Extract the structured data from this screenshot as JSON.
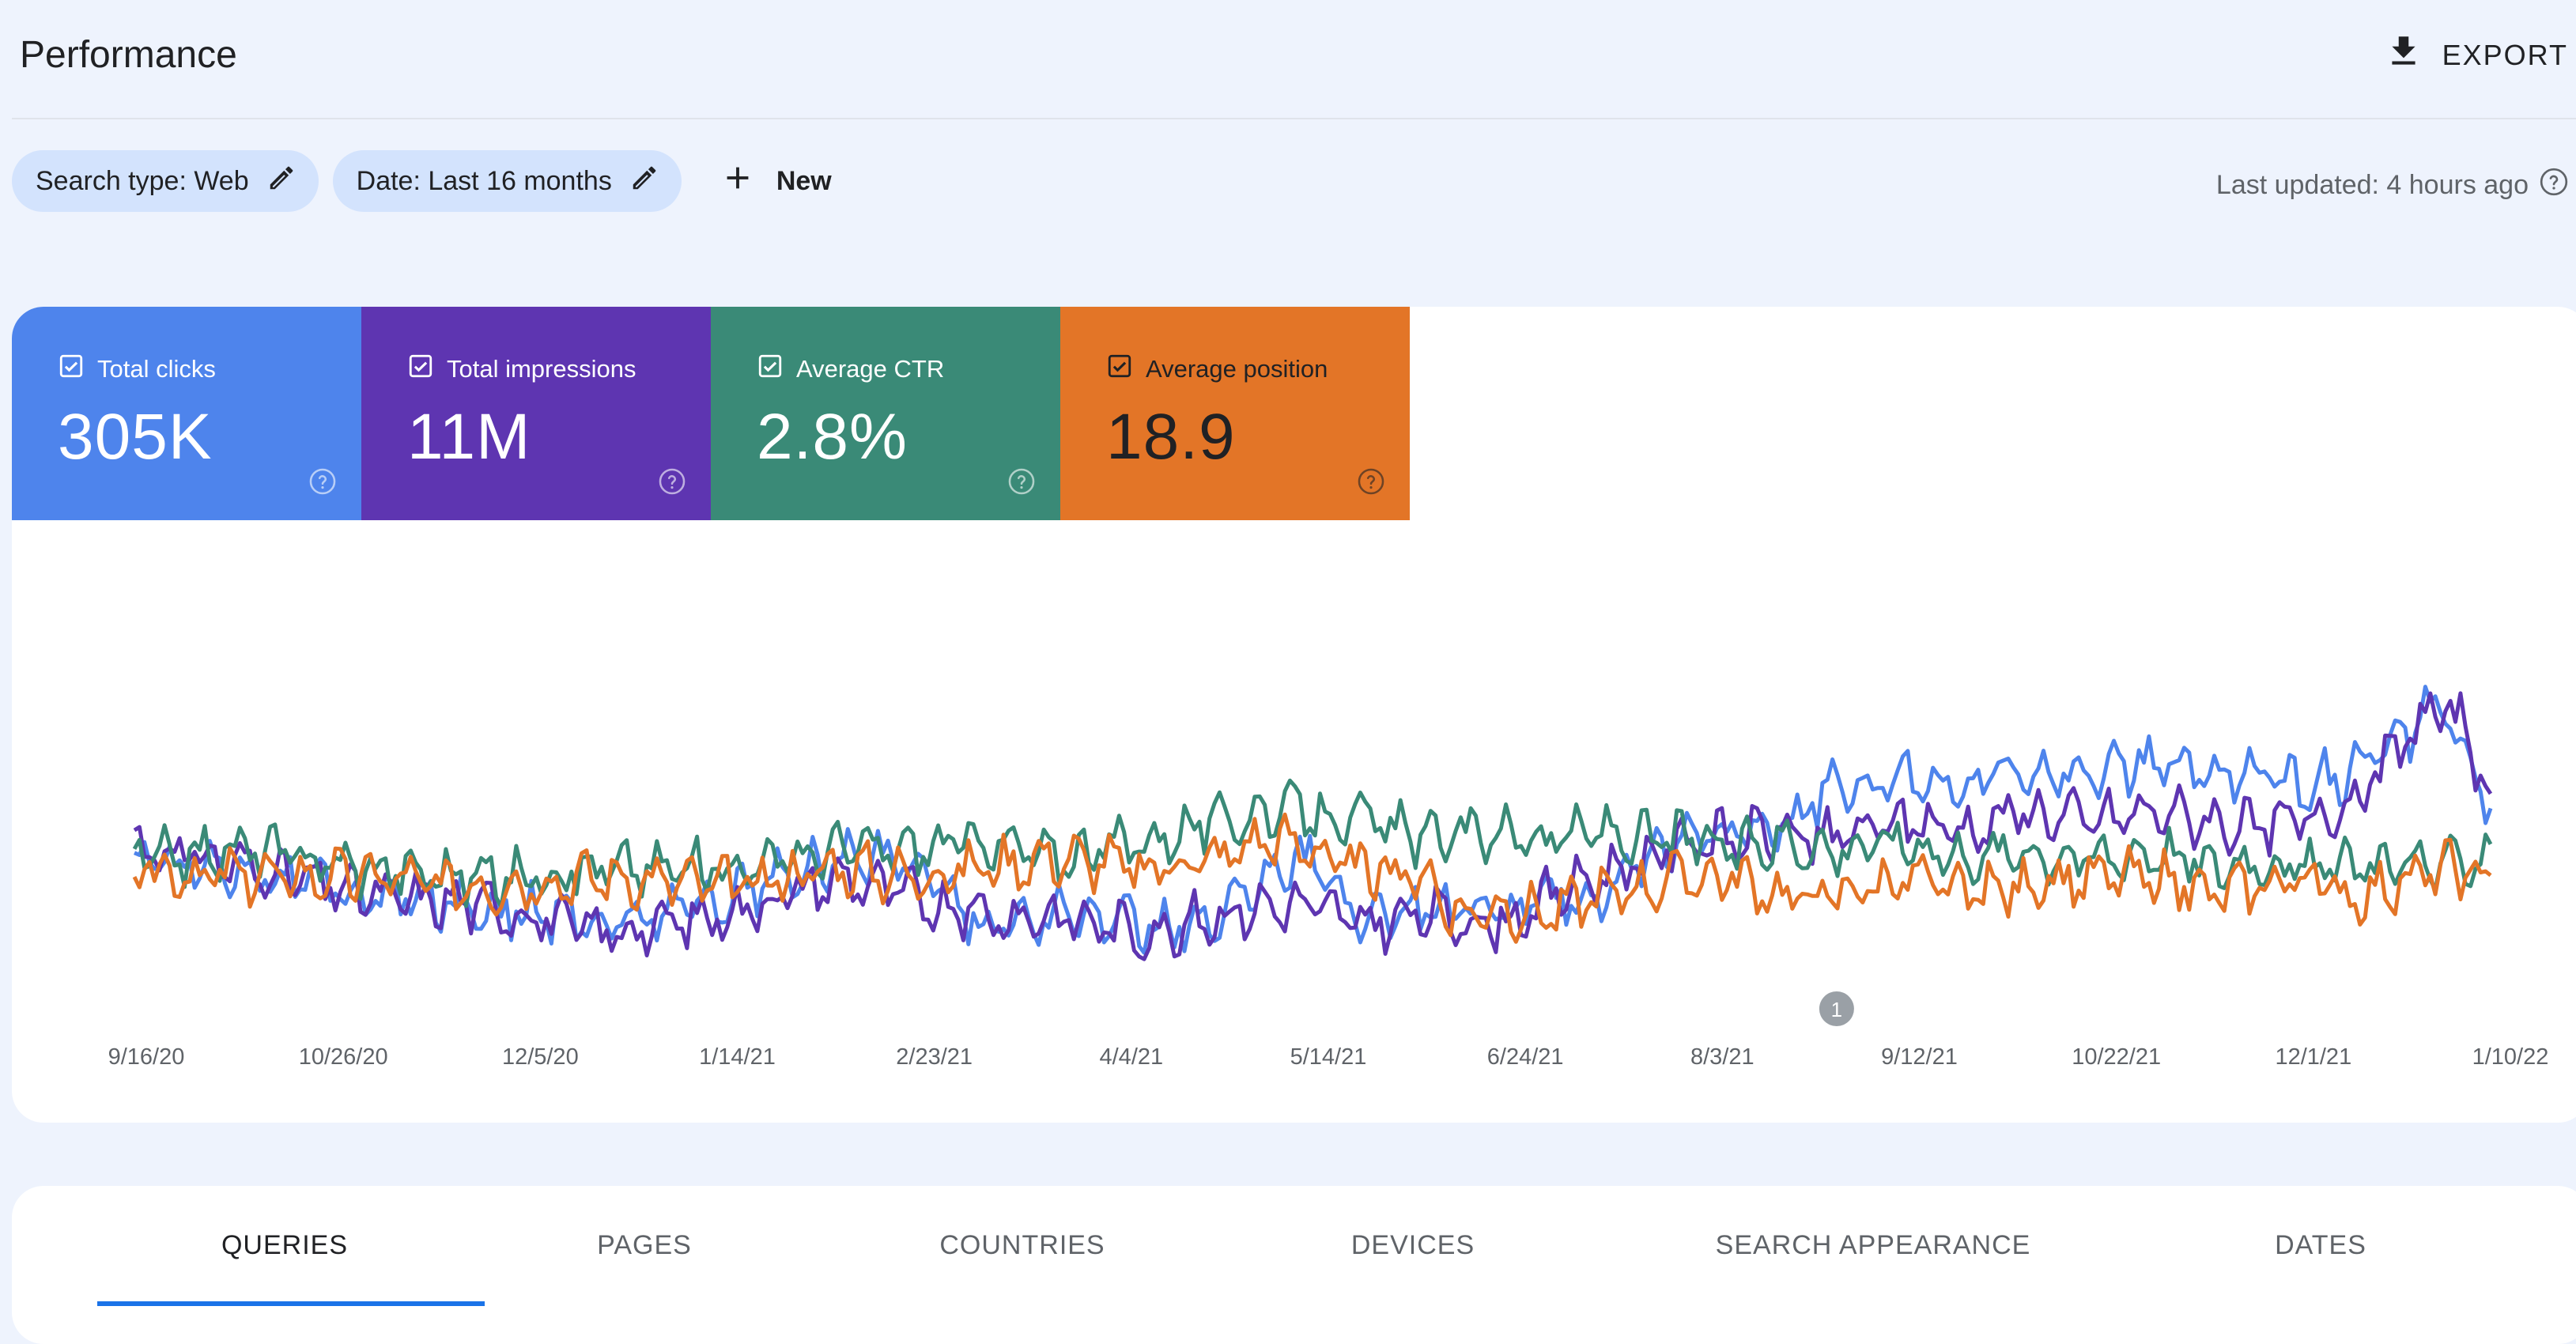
{
  "header": {
    "title": "Performance",
    "export_label": "EXPORT",
    "export_icon": "download-icon"
  },
  "filters": {
    "search_type": "Search type: Web",
    "date": "Date: Last 16 months",
    "new_label": "New",
    "edit_icon": "pencil-icon",
    "add_icon": "plus-icon"
  },
  "last_updated": "Last updated: 4 hours ago",
  "metrics": [
    {
      "label": "Total clicks",
      "value": "305K",
      "color": "#4e84ec",
      "text_color": "#ffffff",
      "checked": true
    },
    {
      "label": "Total impressions",
      "value": "11M",
      "color": "#5e35b1",
      "text_color": "#ffffff",
      "checked": true
    },
    {
      "label": "Average CTR",
      "value": "2.8%",
      "color": "#3a8a77",
      "text_color": "#ffffff",
      "checked": true
    },
    {
      "label": "Average position",
      "value": "18.9",
      "color": "#e37527",
      "text_color": "#202124",
      "checked": true
    }
  ],
  "chart_data": {
    "type": "line",
    "x_axis_type": "date",
    "x_start": "2020-09-16",
    "x_end": "2022-01-19",
    "x_tick_labels": [
      "9/16/20",
      "10/26/20",
      "12/5/20",
      "1/14/21",
      "2/23/21",
      "4/4/21",
      "5/14/21",
      "6/24/21",
      "8/3/21",
      "9/12/21",
      "10/22/21",
      "12/1/21",
      "1/10/22"
    ],
    "y_axis_visible": false,
    "grid": false,
    "annotations": [
      {
        "label": "1",
        "x": "2021-09-05"
      }
    ],
    "series": [
      {
        "name": "Total clicks",
        "color": "#4e84ec",
        "keypoints": [
          [
            0,
            0.82
          ],
          [
            0.05,
            0.8
          ],
          [
            0.1,
            0.74
          ],
          [
            0.15,
            0.72
          ],
          [
            0.2,
            0.68
          ],
          [
            0.25,
            0.74
          ],
          [
            0.3,
            0.82
          ],
          [
            0.33,
            0.82
          ],
          [
            0.36,
            0.68
          ],
          [
            0.39,
            0.7
          ],
          [
            0.43,
            0.68
          ],
          [
            0.46,
            0.68
          ],
          [
            0.48,
            0.8
          ],
          [
            0.5,
            0.82
          ],
          [
            0.52,
            0.7
          ],
          [
            0.55,
            0.72
          ],
          [
            0.58,
            0.7
          ],
          [
            0.6,
            0.74
          ],
          [
            0.62,
            0.74
          ],
          [
            0.64,
            0.82
          ],
          [
            0.66,
            0.86
          ],
          [
            0.68,
            0.88
          ],
          [
            0.7,
            0.9
          ],
          [
            0.72,
            0.96
          ],
          [
            0.75,
            1.0
          ],
          [
            0.78,
            0.97
          ],
          [
            0.8,
            1.02
          ],
          [
            0.83,
            1.0
          ],
          [
            0.86,
            1.02
          ],
          [
            0.88,
            1.0
          ],
          [
            0.9,
            1.0
          ],
          [
            0.92,
            0.98
          ],
          [
            0.94,
            1.0
          ],
          [
            0.96,
            1.06
          ],
          [
            0.975,
            1.14
          ],
          [
            0.985,
            1.08
          ],
          [
            1.0,
            0.92
          ]
        ]
      },
      {
        "name": "Total impressions",
        "color": "#5e35b1",
        "keypoints": [
          [
            0,
            0.85
          ],
          [
            0.05,
            0.8
          ],
          [
            0.1,
            0.74
          ],
          [
            0.15,
            0.72
          ],
          [
            0.2,
            0.66
          ],
          [
            0.25,
            0.7
          ],
          [
            0.3,
            0.78
          ],
          [
            0.33,
            0.74
          ],
          [
            0.36,
            0.7
          ],
          [
            0.39,
            0.7
          ],
          [
            0.43,
            0.66
          ],
          [
            0.46,
            0.7
          ],
          [
            0.48,
            0.72
          ],
          [
            0.5,
            0.72
          ],
          [
            0.52,
            0.68
          ],
          [
            0.55,
            0.7
          ],
          [
            0.58,
            0.68
          ],
          [
            0.6,
            0.74
          ],
          [
            0.62,
            0.78
          ],
          [
            0.64,
            0.82
          ],
          [
            0.66,
            0.86
          ],
          [
            0.68,
            0.86
          ],
          [
            0.7,
            0.88
          ],
          [
            0.72,
            0.86
          ],
          [
            0.75,
            0.9
          ],
          [
            0.78,
            0.88
          ],
          [
            0.8,
            0.92
          ],
          [
            0.83,
            0.9
          ],
          [
            0.86,
            0.92
          ],
          [
            0.88,
            0.9
          ],
          [
            0.9,
            0.88
          ],
          [
            0.92,
            0.9
          ],
          [
            0.94,
            0.94
          ],
          [
            0.96,
            1.04
          ],
          [
            0.975,
            1.14
          ],
          [
            0.99,
            1.1
          ],
          [
            1.0,
            0.9
          ]
        ]
      },
      {
        "name": "Average CTR",
        "color": "#3a8a77",
        "keypoints": [
          [
            0,
            0.82
          ],
          [
            0.05,
            0.84
          ],
          [
            0.1,
            0.8
          ],
          [
            0.15,
            0.78
          ],
          [
            0.2,
            0.8
          ],
          [
            0.25,
            0.8
          ],
          [
            0.3,
            0.84
          ],
          [
            0.33,
            0.84
          ],
          [
            0.36,
            0.86
          ],
          [
            0.39,
            0.82
          ],
          [
            0.43,
            0.86
          ],
          [
            0.46,
            0.9
          ],
          [
            0.48,
            0.92
          ],
          [
            0.5,
            0.92
          ],
          [
            0.52,
            0.9
          ],
          [
            0.55,
            0.86
          ],
          [
            0.58,
            0.88
          ],
          [
            0.6,
            0.86
          ],
          [
            0.62,
            0.88
          ],
          [
            0.64,
            0.86
          ],
          [
            0.66,
            0.86
          ],
          [
            0.68,
            0.84
          ],
          [
            0.7,
            0.86
          ],
          [
            0.72,
            0.84
          ],
          [
            0.75,
            0.86
          ],
          [
            0.78,
            0.82
          ],
          [
            0.8,
            0.84
          ],
          [
            0.83,
            0.82
          ],
          [
            0.86,
            0.84
          ],
          [
            0.88,
            0.8
          ],
          [
            0.9,
            0.82
          ],
          [
            0.92,
            0.8
          ],
          [
            0.94,
            0.8
          ],
          [
            0.96,
            0.82
          ],
          [
            0.98,
            0.8
          ],
          [
            1.0,
            0.84
          ]
        ]
      },
      {
        "name": "Average position",
        "color": "#e37527",
        "keypoints": [
          [
            0,
            0.8
          ],
          [
            0.05,
            0.78
          ],
          [
            0.1,
            0.78
          ],
          [
            0.15,
            0.76
          ],
          [
            0.2,
            0.78
          ],
          [
            0.25,
            0.76
          ],
          [
            0.3,
            0.8
          ],
          [
            0.33,
            0.78
          ],
          [
            0.36,
            0.8
          ],
          [
            0.39,
            0.82
          ],
          [
            0.43,
            0.8
          ],
          [
            0.46,
            0.82
          ],
          [
            0.48,
            0.86
          ],
          [
            0.5,
            0.84
          ],
          [
            0.52,
            0.8
          ],
          [
            0.55,
            0.78
          ],
          [
            0.56,
            0.7
          ],
          [
            0.58,
            0.72
          ],
          [
            0.6,
            0.7
          ],
          [
            0.62,
            0.74
          ],
          [
            0.64,
            0.76
          ],
          [
            0.66,
            0.78
          ],
          [
            0.68,
            0.78
          ],
          [
            0.7,
            0.74
          ],
          [
            0.72,
            0.74
          ],
          [
            0.75,
            0.78
          ],
          [
            0.78,
            0.74
          ],
          [
            0.8,
            0.76
          ],
          [
            0.83,
            0.78
          ],
          [
            0.86,
            0.78
          ],
          [
            0.88,
            0.74
          ],
          [
            0.9,
            0.76
          ],
          [
            0.92,
            0.78
          ],
          [
            0.94,
            0.74
          ],
          [
            0.96,
            0.76
          ],
          [
            0.98,
            0.8
          ],
          [
            1.0,
            0.78
          ]
        ]
      }
    ]
  },
  "tabs": [
    {
      "label": "QUERIES",
      "active": true
    },
    {
      "label": "PAGES",
      "active": false
    },
    {
      "label": "COUNTRIES",
      "active": false
    },
    {
      "label": "DEVICES",
      "active": false
    },
    {
      "label": "SEARCH APPEARANCE",
      "active": false
    },
    {
      "label": "DATES",
      "active": false
    }
  ]
}
